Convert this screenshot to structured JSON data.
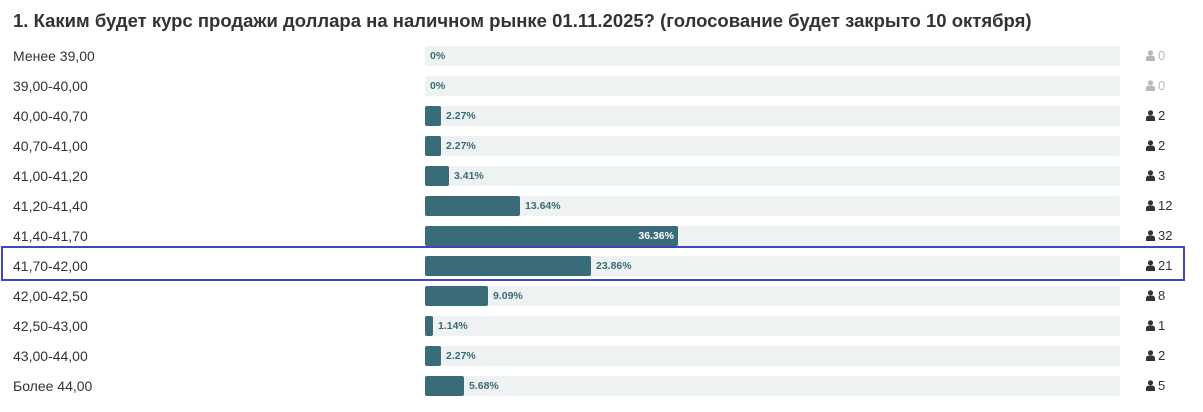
{
  "question": {
    "title": "1. Каким будет курс продажи доллара на наличном рынке 01.11.2025? (голосование будет закрыто 10 октября)"
  },
  "colors": {
    "bar_fill": "#3a6b78",
    "bar_track": "#eef2f2",
    "highlight_border": "#3f48b8",
    "zero_votes": "#b8b8b8"
  },
  "chart_data": {
    "type": "bar",
    "orientation": "horizontal",
    "title": "1. Каким будет курс продажи доллара на наличном рынке 01.11.2025? (голосование будет закрыто 10 октября)",
    "categories": [
      "Менее 39,00",
      "39,00-40,00",
      "40,00-40,70",
      "40,70-41,00",
      "41,00-41,20",
      "41,20-41,40",
      "41,40-41,70",
      "41,70-42,00",
      "42,00-42,50",
      "42,50-43,00",
      "43,00-44,00",
      "Более 44,00"
    ],
    "values": [
      0,
      0,
      2.27,
      2.27,
      3.41,
      13.64,
      36.36,
      23.86,
      9.09,
      1.14,
      2.27,
      5.68
    ],
    "value_labels": [
      "0%",
      "0%",
      "2.27%",
      "2.27%",
      "3.41%",
      "13.64%",
      "36.36%",
      "23.86%",
      "9.09%",
      "1.14%",
      "2.27%",
      "5.68%"
    ],
    "votes": [
      "0",
      "0",
      "2",
      "2",
      "3",
      "12",
      "32",
      "21",
      "8",
      "1",
      "2",
      "5"
    ],
    "highlighted_category": "41,70-42,00",
    "xlim": [
      0,
      100
    ]
  },
  "icons": {
    "votes": "user-icon"
  }
}
